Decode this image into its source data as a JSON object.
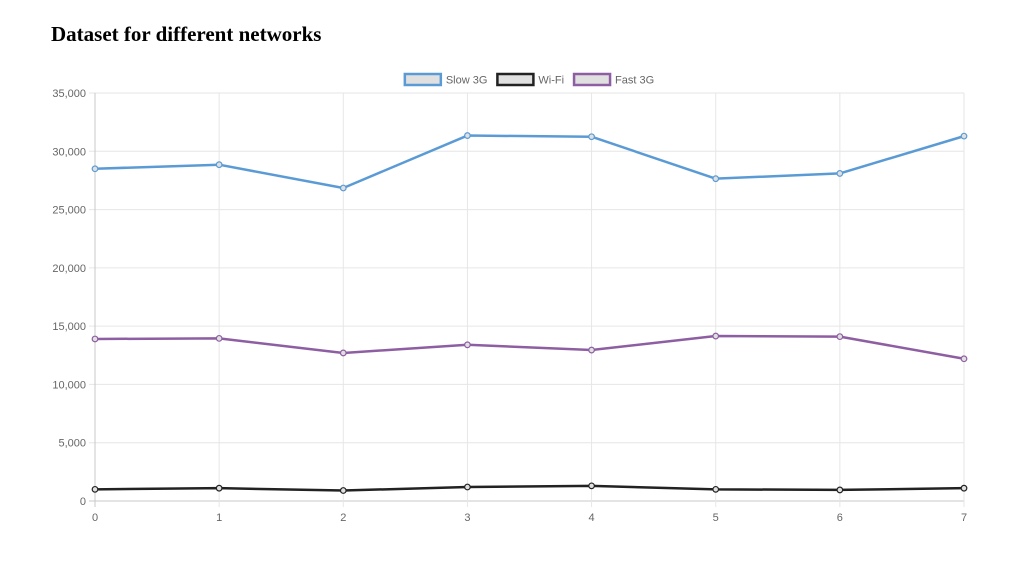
{
  "page": {
    "title": "Dataset for different networks"
  },
  "chart_data": {
    "type": "line",
    "title": "",
    "xlabel": "",
    "ylabel": "",
    "x": [
      0,
      1,
      2,
      3,
      4,
      5,
      6,
      7
    ],
    "x_tick_labels": [
      "0",
      "1",
      "2",
      "3",
      "4",
      "5",
      "6",
      "7"
    ],
    "y_ticks": [
      0,
      5000,
      10000,
      15000,
      20000,
      25000,
      30000,
      35000
    ],
    "y_tick_labels": [
      "0",
      "5,000",
      "10,000",
      "15,000",
      "20,000",
      "25,000",
      "30,000",
      "35,000"
    ],
    "ylim": [
      0,
      35000
    ],
    "grid": true,
    "legend_position": "top-center",
    "series": [
      {
        "name": "Slow 3G",
        "color": "#5b9bd5",
        "fill": "#e0e0e0",
        "values": [
          28500,
          28850,
          26850,
          31350,
          31250,
          27650,
          28100,
          31300
        ]
      },
      {
        "name": "Wi-Fi",
        "color": "#222222",
        "fill": "#e0e0e0",
        "values": [
          1000,
          1100,
          900,
          1200,
          1300,
          1000,
          950,
          1100
        ]
      },
      {
        "name": "Fast 3G",
        "color": "#8e5ea2",
        "fill": "#e0e0e0",
        "values": [
          13900,
          13950,
          12700,
          13400,
          12950,
          14150,
          14100,
          12200
        ]
      }
    ]
  }
}
